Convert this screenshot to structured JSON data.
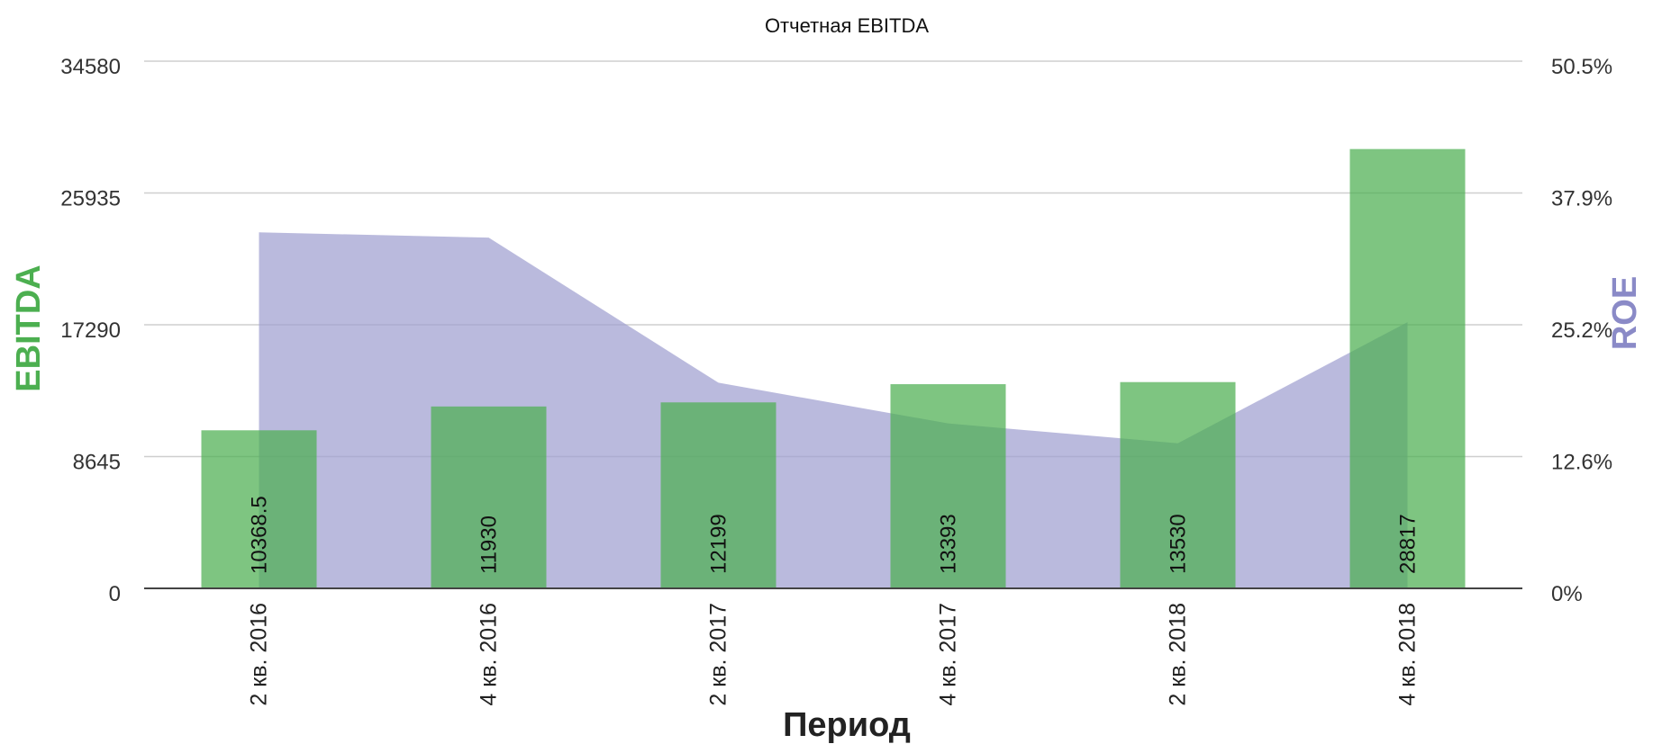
{
  "chart_data": {
    "type": "bar",
    "title": "Отчетная EBITDA",
    "xlabel": "Период",
    "ylabel_left": "EBITDA",
    "ylabel_right": "ROE",
    "categories": [
      "2 кв. 2016",
      "4 кв. 2016",
      "2 кв. 2017",
      "4 кв. 2017",
      "2 кв. 2018",
      "4 кв. 2018"
    ],
    "y_left_ticks": [
      "0",
      "8645",
      "17290",
      "25935",
      "34580"
    ],
    "y_right_ticks": [
      "0%",
      "12.6%",
      "25.2%",
      "37.9%",
      "50.5%"
    ],
    "ylim_left": [
      0,
      34580
    ],
    "ylim_right": [
      0,
      50.5
    ],
    "grid": true,
    "series": [
      {
        "name": "EBITDA",
        "type": "bar",
        "axis": "left",
        "values": [
          10368.5,
          11930,
          12199,
          13393,
          13530,
          28817
        ],
        "labels": [
          "10368.5",
          "11930",
          "12199",
          "13393",
          "13530",
          "28817"
        ]
      },
      {
        "name": "ROE",
        "type": "area",
        "axis": "right",
        "values": [
          34.1,
          33.6,
          19.7,
          15.8,
          13.9,
          25.5
        ]
      }
    ],
    "colors": {
      "bar": "#4caf50",
      "area": "#9f9fd0",
      "ylabel_left": "#4caf50",
      "ylabel_right": "#8a8ac7",
      "grid": "#cfcfcf",
      "axis_line": "#444444",
      "text": "#333333"
    }
  }
}
